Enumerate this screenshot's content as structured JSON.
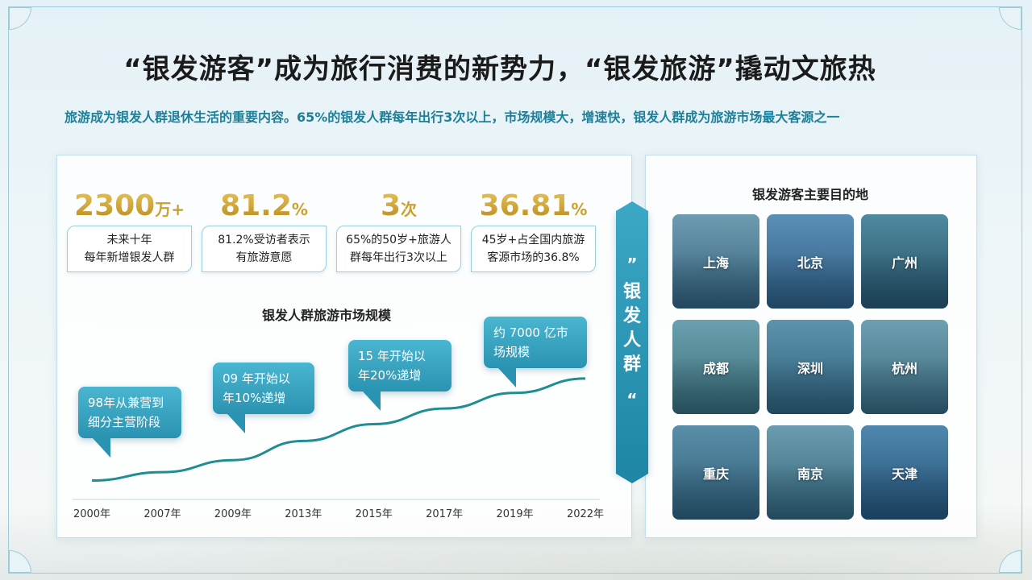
{
  "header": {
    "title": "“银发游客”成为旅行消费的新势力，“银发旅游”撬动文旅热",
    "subtitle": "旅游成为银发人群退休生活的重要内容。65%的银发人群每年出行3次以上，市场规模大，增速快，银发人群成为旅游市场最大客源之一"
  },
  "stats": [
    {
      "value": "2300",
      "unit": "万+",
      "desc": "未来十年\n每年新增银发人群"
    },
    {
      "value": "81.2",
      "unit": "%",
      "desc": "81.2%受访者表示\n有旅游意愿"
    },
    {
      "value": "3",
      "unit": "次",
      "desc": "65%的50岁+旅游人\n群每年出行3次以上"
    },
    {
      "value": "36.81",
      "unit": "%",
      "desc": "45岁+占全国内旅游\n客源市场的36.8%"
    }
  ],
  "chart_data": {
    "type": "line",
    "title": "银发人群旅游市场规模",
    "categories": [
      "2000年",
      "2007年",
      "2009年",
      "2013年",
      "2015年",
      "2017年",
      "2019年",
      "2022年"
    ],
    "series": [
      {
        "values": [
          0.05,
          0.12,
          0.22,
          0.38,
          0.52,
          0.65,
          0.78,
          0.9
        ]
      }
    ],
    "annotations": [
      {
        "text": "98年从兼营到\n细分主营阶段",
        "category": "2000年"
      },
      {
        "text": "09 年开始以\n年10%递增",
        "category": "2009年"
      },
      {
        "text": "15 年开始以\n年20%递增",
        "category": "2015年"
      },
      {
        "text": "约 7000 亿市\n场规模",
        "category": "2019年"
      }
    ],
    "line_color": "#1e8e93"
  },
  "banner": {
    "quote_open": "”",
    "text": "银发人群",
    "quote_close": "“"
  },
  "destinations": {
    "title": "银发游客主要目的地",
    "cities": [
      "上海",
      "北京",
      "广州",
      "成都",
      "深圳",
      "杭州",
      "重庆",
      "南京",
      "天津"
    ]
  },
  "colors": {
    "accent": "#1e7f98",
    "gold": "#c9a22e",
    "bubble": "#2a93b1"
  }
}
